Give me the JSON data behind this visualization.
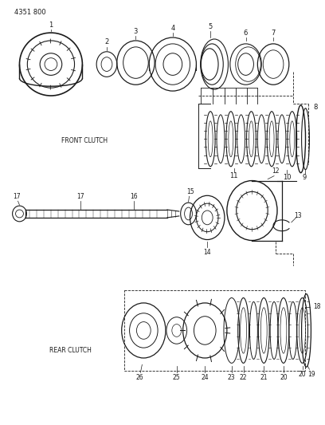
{
  "bg_color": "#ffffff",
  "line_color": "#1a1a1a",
  "gray_color": "#888888",
  "title_text": "4351 800",
  "label_front_clutch": "FRONT CLUTCH",
  "label_rear_clutch": "REAR CLUTCH",
  "fig_width": 4.08,
  "fig_height": 5.33,
  "dpi": 100
}
